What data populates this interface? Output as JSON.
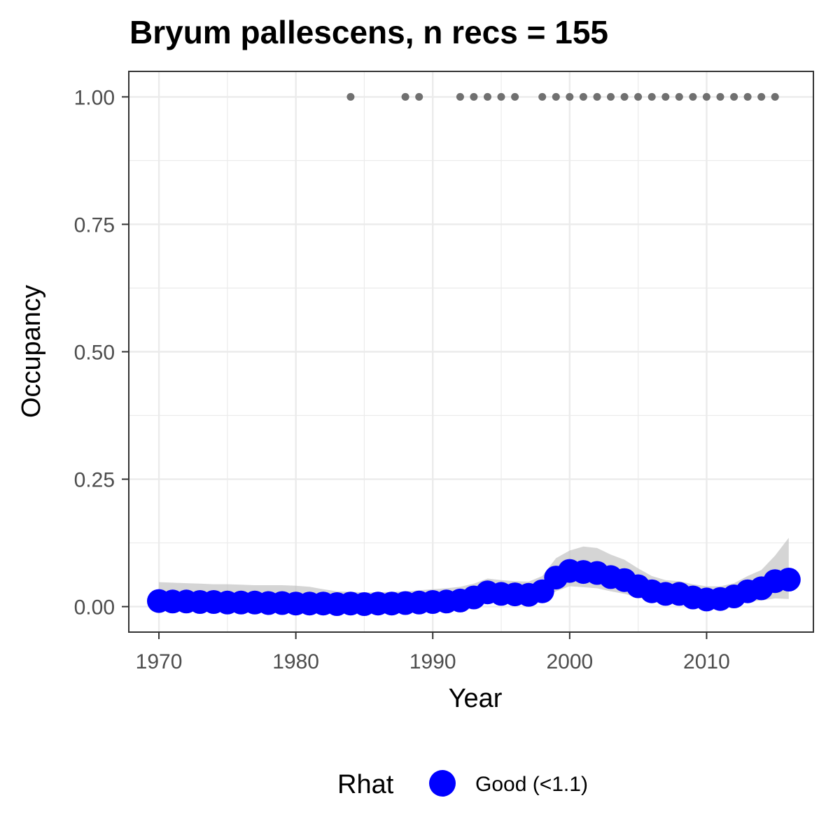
{
  "chart_data": {
    "type": "line",
    "title": "Bryum pallescens, n recs = 155",
    "xlabel": "Year",
    "ylabel": "Occupancy",
    "xlim": [
      1967.8,
      2017.8
    ],
    "ylim": [
      -0.05,
      1.05
    ],
    "x_ticks": [
      1970,
      1980,
      1990,
      2000,
      2010
    ],
    "x_tick_labels": [
      "1970",
      "1980",
      "1990",
      "2000",
      "2010"
    ],
    "y_ticks": [
      0,
      0.25,
      0.5,
      0.75,
      1.0
    ],
    "y_tick_labels": [
      "0.00",
      "0.25",
      "0.50",
      "0.75",
      "1.00"
    ],
    "grid": true,
    "legend": {
      "position": "bottom",
      "title": "Rhat",
      "entries": [
        {
          "label": "Good (<1.1)",
          "color": "#0000ff"
        }
      ]
    },
    "colors": {
      "estimate": "#0000ff",
      "ribbon": "#bfbfbf",
      "records": "#707070",
      "grid": "#ebebeb",
      "frame": "#333333"
    },
    "series": [
      {
        "kind": "occupancy_estimate",
        "x": [
          1970,
          1971,
          1972,
          1973,
          1974,
          1975,
          1976,
          1977,
          1978,
          1979,
          1980,
          1981,
          1982,
          1983,
          1984,
          1985,
          1986,
          1987,
          1988,
          1989,
          1990,
          1991,
          1992,
          1993,
          1994,
          1995,
          1996,
          1997,
          1998,
          1999,
          2000,
          2001,
          2002,
          2003,
          2004,
          2005,
          2006,
          2007,
          2008,
          2009,
          2010,
          2011,
          2012,
          2013,
          2014,
          2015,
          2016
        ],
        "y": [
          0.011,
          0.01,
          0.01,
          0.009,
          0.009,
          0.008,
          0.008,
          0.008,
          0.007,
          0.007,
          0.006,
          0.006,
          0.006,
          0.005,
          0.006,
          0.005,
          0.006,
          0.006,
          0.007,
          0.008,
          0.009,
          0.01,
          0.012,
          0.018,
          0.028,
          0.025,
          0.024,
          0.023,
          0.03,
          0.057,
          0.07,
          0.068,
          0.066,
          0.058,
          0.052,
          0.04,
          0.03,
          0.025,
          0.025,
          0.018,
          0.014,
          0.015,
          0.02,
          0.03,
          0.036,
          0.05,
          0.053
        ],
        "lower": [
          0.002,
          0.002,
          0.002,
          0.002,
          0.002,
          0.002,
          0.002,
          0.002,
          0.001,
          0.001,
          0.001,
          0.001,
          0.001,
          0.001,
          0.001,
          0.001,
          0.001,
          0.001,
          0.001,
          0.001,
          0.002,
          0.002,
          0.003,
          0.006,
          0.01,
          0.01,
          0.009,
          0.009,
          0.012,
          0.03,
          0.04,
          0.038,
          0.036,
          0.03,
          0.025,
          0.018,
          0.012,
          0.01,
          0.009,
          0.006,
          0.004,
          0.004,
          0.006,
          0.01,
          0.012,
          0.016,
          0.015
        ],
        "upper": [
          0.048,
          0.047,
          0.046,
          0.045,
          0.044,
          0.044,
          0.043,
          0.042,
          0.042,
          0.042,
          0.041,
          0.039,
          0.034,
          0.03,
          0.029,
          0.028,
          0.028,
          0.029,
          0.03,
          0.032,
          0.034,
          0.036,
          0.039,
          0.045,
          0.055,
          0.052,
          0.05,
          0.049,
          0.06,
          0.095,
          0.11,
          0.118,
          0.115,
          0.102,
          0.092,
          0.075,
          0.06,
          0.052,
          0.05,
          0.044,
          0.04,
          0.04,
          0.046,
          0.06,
          0.072,
          0.1,
          0.135
        ]
      },
      {
        "kind": "records",
        "x": [
          1984,
          1988,
          1989,
          1992,
          1993,
          1994,
          1995,
          1996,
          1998,
          1999,
          2000,
          2001,
          2002,
          2003,
          2004,
          2005,
          2006,
          2007,
          2008,
          2009,
          2010,
          2011,
          2012,
          2013,
          2014,
          2015
        ],
        "y": [
          1,
          1,
          1,
          1,
          1,
          1,
          1,
          1,
          1,
          1,
          1,
          1,
          1,
          1,
          1,
          1,
          1,
          1,
          1,
          1,
          1,
          1,
          1,
          1,
          1,
          1
        ]
      }
    ]
  }
}
